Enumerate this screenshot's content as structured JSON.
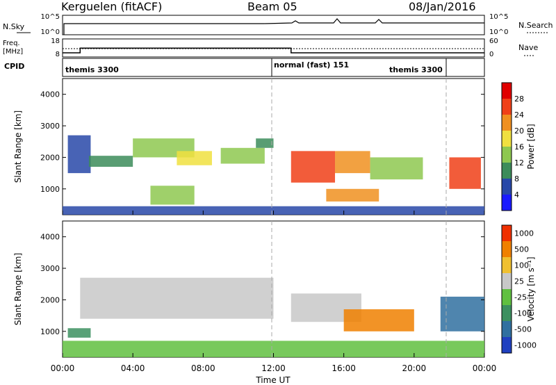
{
  "header": {
    "station": "Kerguelen (fitACF)",
    "beam": "Beam 05",
    "date": "08/Jan/2016"
  },
  "strips": {
    "nsky": {
      "label": "N.Sky",
      "ticks": [
        "10^5",
        "10^0"
      ]
    },
    "nsearch": {
      "label": "N.Search",
      "ticks": [
        "10^5",
        "10^0"
      ]
    },
    "freq": {
      "label_line1": "Freq.",
      "label_line2": "[MHz]",
      "ticks": [
        "18",
        "8"
      ]
    },
    "nave": {
      "label": "Nave",
      "ticks": [
        "60",
        "0"
      ]
    },
    "cpid": {
      "label": "CPID",
      "segments": [
        {
          "name": "themis 3300",
          "start_h": 0,
          "end_h": 12
        },
        {
          "name": "normal (fast) 151",
          "start_h": 12,
          "end_h": 21.8
        },
        {
          "name": "themis 3300",
          "start_h": 21.8,
          "end_h": 24
        }
      ]
    }
  },
  "x_axis": {
    "label": "Time UT",
    "tick_labels": [
      "00:00",
      "04:00",
      "08:00",
      "12:00",
      "16:00",
      "20:00",
      "00:00"
    ],
    "tick_hours": [
      0,
      4,
      8,
      12,
      16,
      20,
      24
    ]
  },
  "panels": {
    "power": {
      "ylabel": "Slant Range [km]",
      "yticks": [
        "1000",
        "2000",
        "3000",
        "4000"
      ],
      "colorbar_label": "Power [dB]",
      "colorbar_ticks": [
        "4",
        "8",
        "12",
        "16",
        "20",
        "24",
        "28"
      ],
      "colors": [
        "#1a1aff",
        "#2848a8",
        "#3c8c5a",
        "#8ec850",
        "#f0e040",
        "#f09020",
        "#f04018",
        "#e00000"
      ]
    },
    "velocity": {
      "ylabel": "Slant Range [km]",
      "yticks": [
        "1000",
        "2000",
        "3000",
        "4000"
      ],
      "colorbar_label": "Velocity [m s⁻¹]",
      "colorbar_ticks": [
        "1000",
        "500",
        "100",
        "25",
        "-25",
        "-100",
        "-500",
        "-1000"
      ],
      "colors": [
        "#2040c0",
        "#3070a0",
        "#3c9060",
        "#60c040",
        "#c8c8c8",
        "#f0c030",
        "#f08000",
        "#f03000"
      ]
    }
  },
  "chart_data": {
    "type": "heatmap",
    "x_range": [
      0,
      24
    ],
    "x_unit": "hours UT",
    "y_range": [
      180,
      4500
    ],
    "y_unit": "km",
    "frequency": {
      "ylim": [
        8,
        18
      ],
      "steps": [
        {
          "start_h": 0,
          "end_h": 1.0,
          "value": 10.3
        },
        {
          "start_h": 1.0,
          "end_h": 13.0,
          "value": 12.9
        },
        {
          "start_h": 13.0,
          "end_h": 24,
          "value": 10.3
        }
      ]
    },
    "power_regions": [
      {
        "t0": 0.3,
        "t1": 1.6,
        "r0": 1500,
        "r1": 2700,
        "level": 1
      },
      {
        "t0": 1.5,
        "t1": 4.0,
        "r0": 1700,
        "r1": 2050,
        "level": 2
      },
      {
        "t0": 4.0,
        "t1": 7.5,
        "r0": 2000,
        "r1": 2600,
        "level": 3
      },
      {
        "t0": 6.5,
        "t1": 8.5,
        "r0": 1750,
        "r1": 2200,
        "level": 4
      },
      {
        "t0": 5.0,
        "t1": 7.5,
        "r0": 500,
        "r1": 1100,
        "level": 3
      },
      {
        "t0": 9.0,
        "t1": 11.5,
        "r0": 1800,
        "r1": 2300,
        "level": 3
      },
      {
        "t0": 11.0,
        "t1": 12.0,
        "r0": 2300,
        "r1": 2600,
        "level": 2
      },
      {
        "t0": 13.0,
        "t1": 15.5,
        "r0": 1200,
        "r1": 2200,
        "level": 6
      },
      {
        "t0": 15.5,
        "t1": 17.5,
        "r0": 1500,
        "r1": 2200,
        "level": 5
      },
      {
        "t0": 15.0,
        "t1": 18.0,
        "r0": 600,
        "r1": 1000,
        "level": 5
      },
      {
        "t0": 17.5,
        "t1": 20.5,
        "r0": 1300,
        "r1": 2000,
        "level": 3
      },
      {
        "t0": 22.0,
        "t1": 23.8,
        "r0": 1000,
        "r1": 2000,
        "level": 6
      },
      {
        "t0": 0,
        "t1": 24,
        "r0": 180,
        "r1": 450,
        "level": 1
      }
    ],
    "velocity_regions": [
      {
        "t0": 0.3,
        "t1": 1.6,
        "r0": 800,
        "r1": 1100,
        "level": 2
      },
      {
        "t0": 1.0,
        "t1": 12.0,
        "r0": 1400,
        "r1": 2700,
        "level": 4
      },
      {
        "t0": 13.0,
        "t1": 17.0,
        "r0": 1300,
        "r1": 2200,
        "level": 4
      },
      {
        "t0": 16.0,
        "t1": 20.0,
        "r0": 1000,
        "r1": 1700,
        "level": 6
      },
      {
        "t0": 21.5,
        "t1": 24,
        "r0": 1000,
        "r1": 2100,
        "level": 1
      },
      {
        "t0": 0,
        "t1": 24,
        "r0": 180,
        "r1": 700,
        "level": 3
      }
    ]
  }
}
